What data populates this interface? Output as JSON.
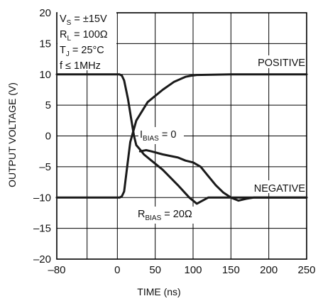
{
  "chart_data": {
    "type": "line",
    "xlabel": "TIME (ns)",
    "ylabel": "OUTPUT VOLTAGE (V)",
    "xlim": [
      -80,
      250
    ],
    "ylim": [
      -20,
      20
    ],
    "x_ticks": [
      "–80",
      "0",
      "50",
      "100",
      "150",
      "200",
      "250"
    ],
    "y_ticks": [
      "20",
      "15",
      "10",
      "5",
      "0",
      "–5",
      "–10",
      "–15",
      "–20"
    ],
    "grid": true,
    "conditions": [
      "V_S = ±15V",
      "R_L = 100Ω",
      "T_J = 25°C",
      "f ≤ 1MHz"
    ],
    "annotations": {
      "positive": "POSITIVE",
      "negative": "NEGATIVE",
      "ibias": "I_BIAS = 0",
      "rbias": "R_BIAS = 20Ω"
    },
    "series": [
      {
        "x": [
          -80,
          0,
          3,
          6,
          9,
          14,
          18,
          22,
          25,
          30,
          35,
          45,
          60,
          80,
          95,
          105,
          120,
          135,
          150,
          160,
          170,
          180,
          200,
          250
        ],
        "y": [
          10,
          10,
          10,
          9.8,
          9,
          6,
          3,
          0,
          -1.5,
          -2.2,
          -3,
          -4,
          -5.5,
          -8,
          -10,
          -11,
          -10,
          -10,
          -10,
          -10.5,
          -10.2,
          -10,
          -10,
          -10
        ]
      },
      {
        "x": [
          -80,
          0,
          3,
          6,
          9,
          12,
          17,
          25,
          40,
          60,
          75,
          90,
          98,
          105,
          150,
          250
        ],
        "y": [
          -10,
          -10,
          -10,
          -9.8,
          -9,
          -6,
          -1,
          2.5,
          5.5,
          7.5,
          8.8,
          9.6,
          9.8,
          9.9,
          10,
          10
        ]
      },
      {
        "x": [
          30,
          38,
          45,
          60,
          80,
          90,
          100,
          110,
          120,
          130,
          140,
          150,
          160,
          175,
          250
        ],
        "y": [
          -2.5,
          -2.3,
          -2.5,
          -3,
          -3.5,
          -4,
          -4.3,
          -5,
          -6.5,
          -8,
          -9.2,
          -10,
          -10,
          -10,
          -10
        ]
      }
    ]
  }
}
